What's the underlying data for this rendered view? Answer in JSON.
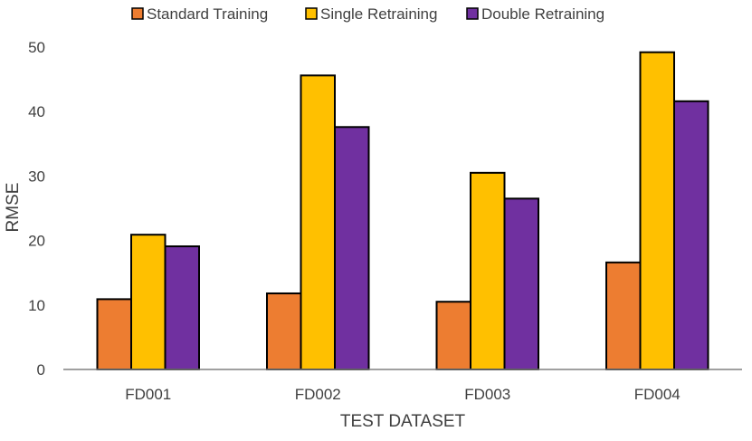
{
  "chart_data": {
    "type": "bar",
    "title": "",
    "xlabel": "TEST DATASET",
    "ylabel": "RMSE",
    "ylim": [
      0,
      50
    ],
    "yticks": [
      0,
      10,
      20,
      30,
      40,
      50
    ],
    "grid": false,
    "legend_position": "top",
    "categories": [
      "FD001",
      "FD002",
      "FD003",
      "FD004"
    ],
    "series": [
      {
        "name": "Standard Training",
        "color": "#ED7D31",
        "values": [
          10.9,
          11.8,
          10.5,
          16.6
        ]
      },
      {
        "name": "Single Retraining",
        "color": "#FFC000",
        "values": [
          20.9,
          45.6,
          30.5,
          49.2
        ]
      },
      {
        "name": "Double Retraining",
        "color": "#7030A0",
        "values": [
          19.1,
          37.6,
          26.5,
          41.6
        ]
      }
    ]
  }
}
